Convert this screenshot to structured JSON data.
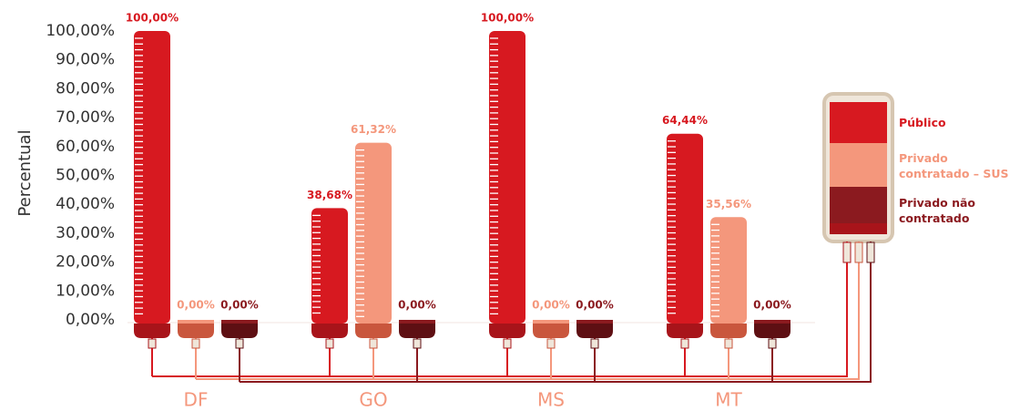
{
  "chart_data": {
    "type": "bloodbag-bar",
    "y_label": "Percentual",
    "categories": [
      "DF",
      "GO",
      "MS",
      "MT"
    ],
    "series": [
      {
        "name": "Público",
        "color": "#d71920",
        "values": [
          100,
          38.68,
          100,
          64.44
        ],
        "value_labels": [
          "100,00%",
          "38,68%",
          "100,00%",
          "64,44%"
        ]
      },
      {
        "name": "Privado contratado – SUS",
        "color": "#f4977c",
        "values": [
          0,
          61.32,
          0,
          35.56
        ],
        "value_labels": [
          "0,00%",
          "61,32%",
          "0,00%",
          "35,56%"
        ]
      },
      {
        "name": "Privado não contratado",
        "color": "#8b1a1f",
        "values": [
          0,
          0,
          0,
          0
        ],
        "value_labels": [
          "0,00%",
          "0,00%",
          "0,00%",
          "0,00%"
        ]
      }
    ],
    "ylim": [
      0,
      100
    ],
    "yticks": [
      {
        "value": 0,
        "label": "0,00%"
      },
      {
        "value": 10,
        "label": "10,00%"
      },
      {
        "value": 20,
        "label": "20,00%"
      },
      {
        "value": 30,
        "label": "30,00%"
      },
      {
        "value": 40,
        "label": "40,00%"
      },
      {
        "value": 50,
        "label": "50,00%"
      },
      {
        "value": 60,
        "label": "60,00%"
      },
      {
        "value": 70,
        "label": "70,00%"
      },
      {
        "value": 80,
        "label": "80,00%"
      },
      {
        "value": 90,
        "label": "90,00%"
      },
      {
        "value": 100,
        "label": "100,00%"
      }
    ],
    "grid": false,
    "legend": "right"
  }
}
